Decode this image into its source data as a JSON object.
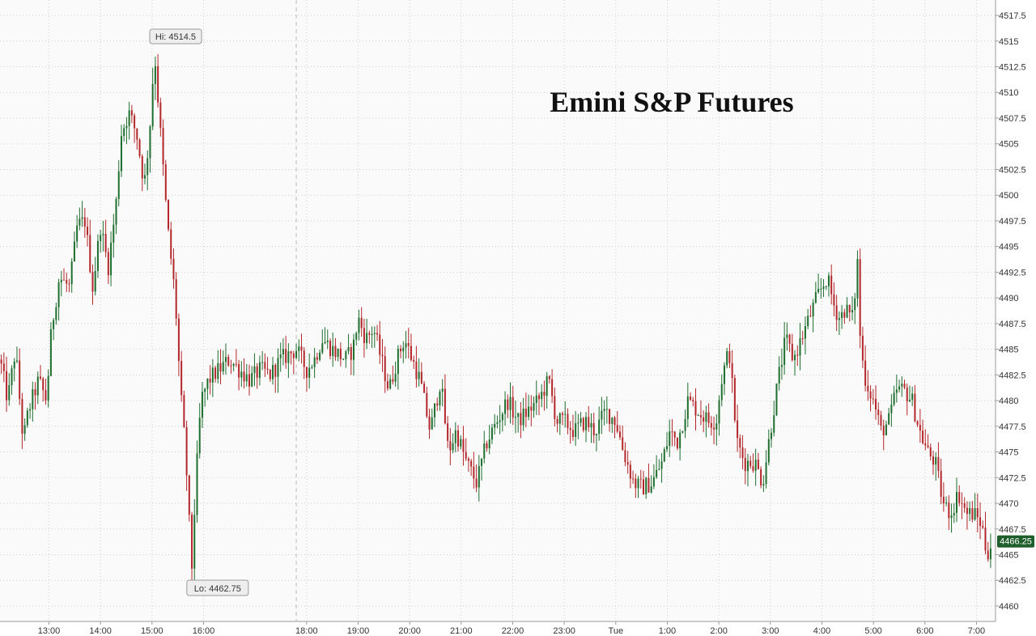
{
  "chart_data": {
    "type": "candlestick",
    "title": "Emini S&P Futures",
    "ylim": [
      4458.5,
      4519
    ],
    "y_ticks": [
      "4460",
      "4462.5",
      "4465",
      "4467.5",
      "4470",
      "4472.5",
      "4475",
      "4477.5",
      "4480",
      "4482.5",
      "4485",
      "4487.5",
      "4490",
      "4492.5",
      "4495",
      "4497.5",
      "4500",
      "4502.5",
      "4505",
      "4507.5",
      "4510",
      "4512.5",
      "4515",
      "4517.5"
    ],
    "x_ticks": [
      "13:00",
      "14:00",
      "15:00",
      "16:00",
      "18:00",
      "19:00",
      "20:00",
      "21:00",
      "22:00",
      "23:00",
      "Tue",
      "1:00",
      "2:00",
      "3:00",
      "4:00",
      "5:00",
      "6:00",
      "7:00"
    ],
    "x_tick_hours": [
      13,
      14,
      15,
      16,
      18,
      19,
      20,
      21,
      22,
      23,
      24,
      25,
      26,
      27,
      28,
      29,
      30,
      31
    ],
    "x_range_hours": [
      12.05,
      31.37
    ],
    "session_break_hour": 17.8,
    "high_label": "Hi: 4514.5",
    "high": {
      "hour": 15.05,
      "price": 4514.5
    },
    "low_label": "Lo: 4462.75",
    "low": {
      "hour": 15.77,
      "price": 4462.75
    },
    "last_price_label": "4466.25",
    "last_price": 4466.25,
    "path": [
      [
        12.05,
        4484
      ],
      [
        12.2,
        4480
      ],
      [
        12.35,
        4485
      ],
      [
        12.5,
        4476
      ],
      [
        12.6,
        4479
      ],
      [
        12.8,
        4482
      ],
      [
        12.95,
        4480
      ],
      [
        13.05,
        4487
      ],
      [
        13.2,
        4492
      ],
      [
        13.4,
        4491
      ],
      [
        13.55,
        4497
      ],
      [
        13.7,
        4497.5
      ],
      [
        13.85,
        4491
      ],
      [
        14.0,
        4497
      ],
      [
        14.15,
        4493
      ],
      [
        14.3,
        4499
      ],
      [
        14.4,
        4506
      ],
      [
        14.55,
        4508
      ],
      [
        14.7,
        4506
      ],
      [
        14.85,
        4501
      ],
      [
        14.95,
        4506
      ],
      [
        15.05,
        4514
      ],
      [
        15.15,
        4507
      ],
      [
        15.3,
        4497
      ],
      [
        15.45,
        4490
      ],
      [
        15.55,
        4481
      ],
      [
        15.65,
        4475
      ],
      [
        15.77,
        4463.5
      ],
      [
        15.85,
        4472
      ],
      [
        15.95,
        4480
      ],
      [
        16.1,
        4482
      ],
      [
        16.3,
        4483
      ],
      [
        16.5,
        4484
      ],
      [
        16.7,
        4483
      ],
      [
        16.9,
        4482
      ],
      [
        17.1,
        4483
      ],
      [
        17.3,
        4482.5
      ],
      [
        17.5,
        4484
      ],
      [
        17.8,
        4485
      ],
      [
        18.0,
        4483
      ],
      [
        18.15,
        4484
      ],
      [
        18.3,
        4486
      ],
      [
        18.5,
        4485
      ],
      [
        18.75,
        4484
      ],
      [
        18.9,
        4485
      ],
      [
        19.0,
        4488
      ],
      [
        19.15,
        4486
      ],
      [
        19.3,
        4487
      ],
      [
        19.45,
        4484
      ],
      [
        19.6,
        4481
      ],
      [
        19.75,
        4484
      ],
      [
        19.9,
        4486
      ],
      [
        20.05,
        4484
      ],
      [
        20.2,
        4482
      ],
      [
        20.4,
        4477
      ],
      [
        20.6,
        4482
      ],
      [
        20.75,
        4475
      ],
      [
        20.9,
        4477
      ],
      [
        21.1,
        4474
      ],
      [
        21.3,
        4472
      ],
      [
        21.5,
        4476
      ],
      [
        21.7,
        4478
      ],
      [
        21.9,
        4480
      ],
      [
        22.1,
        4478
      ],
      [
        22.3,
        4479
      ],
      [
        22.5,
        4480
      ],
      [
        22.7,
        4482
      ],
      [
        22.85,
        4478
      ],
      [
        23.0,
        4478
      ],
      [
        23.2,
        4477
      ],
      [
        23.4,
        4478
      ],
      [
        23.6,
        4477
      ],
      [
        23.8,
        4479
      ],
      [
        24.0,
        4478
      ],
      [
        24.15,
        4475
      ],
      [
        24.35,
        4472
      ],
      [
        24.5,
        4471.5
      ],
      [
        24.7,
        4472
      ],
      [
        24.9,
        4474
      ],
      [
        25.05,
        4477
      ],
      [
        25.2,
        4476
      ],
      [
        25.4,
        4480
      ],
      [
        25.6,
        4479
      ],
      [
        25.8,
        4478
      ],
      [
        25.95,
        4478
      ],
      [
        26.05,
        4482
      ],
      [
        26.2,
        4485
      ],
      [
        26.35,
        4476
      ],
      [
        26.5,
        4474
      ],
      [
        26.7,
        4474
      ],
      [
        26.85,
        4472
      ],
      [
        27.0,
        4477
      ],
      [
        27.15,
        4482
      ],
      [
        27.3,
        4486
      ],
      [
        27.45,
        4484
      ],
      [
        27.6,
        4486
      ],
      [
        27.75,
        4488
      ],
      [
        27.9,
        4490
      ],
      [
        28.1,
        4492
      ],
      [
        28.25,
        4489
      ],
      [
        28.35,
        4488
      ],
      [
        28.45,
        4489
      ],
      [
        28.6,
        4488
      ],
      [
        28.7,
        4494
      ],
      [
        28.75,
        4485
      ],
      [
        28.85,
        4482
      ],
      [
        29.0,
        4480
      ],
      [
        29.15,
        4477
      ],
      [
        29.3,
        4478
      ],
      [
        29.45,
        4481
      ],
      [
        29.6,
        4481
      ],
      [
        29.75,
        4480
      ],
      [
        29.9,
        4477
      ],
      [
        30.05,
        4475
      ],
      [
        30.2,
        4474
      ],
      [
        30.35,
        4470
      ],
      [
        30.5,
        4469
      ],
      [
        30.65,
        4471
      ],
      [
        30.8,
        4469
      ],
      [
        30.95,
        4469
      ],
      [
        31.1,
        4468
      ],
      [
        31.2,
        4465
      ],
      [
        31.3,
        4466.25
      ]
    ]
  }
}
